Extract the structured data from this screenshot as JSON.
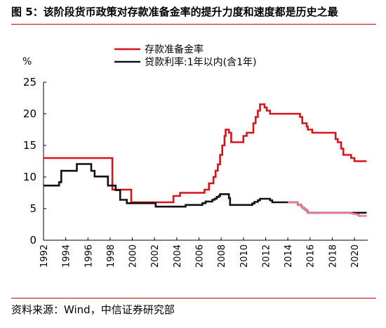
{
  "header": {
    "title": "图 5：该阶段货币政策对存款准备金率的提升力度和速度都是历史之最"
  },
  "footer": {
    "source": "资料来源：Wind，中信证券研究部"
  },
  "colors": {
    "rrr": "#d7141a",
    "loan": "#111111",
    "loan_overlay": "#f0748c",
    "rule": "#c00000"
  },
  "chart_data": {
    "type": "line",
    "title": "",
    "ylabel": "%",
    "xlabel": "",
    "xlim": [
      1992,
      2021.2
    ],
    "ylim": [
      0,
      25
    ],
    "yticks": [
      0,
      5,
      10,
      15,
      20,
      25
    ],
    "xticks": [
      1992,
      1994,
      1996,
      1998,
      2000,
      2002,
      2004,
      2006,
      2008,
      2010,
      2012,
      2014,
      2016,
      2018,
      2020
    ],
    "ytick_labels": [
      "0",
      "5",
      "10",
      "15",
      "20",
      "25"
    ],
    "xtick_labels": [
      "1992",
      "1994",
      "1996",
      "1998",
      "2000",
      "2002",
      "2004",
      "2006",
      "2008",
      "2010",
      "2012",
      "2014",
      "2016",
      "2018",
      "2020"
    ],
    "legend_position": "top-center",
    "grid": false,
    "series": [
      {
        "name": "存款准备金率",
        "step": true,
        "points": [
          [
            1992,
            13
          ],
          [
            1998.2,
            13
          ],
          [
            1998.2,
            8
          ],
          [
            1999.9,
            8
          ],
          [
            1999.9,
            6
          ],
          [
            2003.7,
            6
          ],
          [
            2003.7,
            7
          ],
          [
            2004.3,
            7
          ],
          [
            2004.3,
            7.5
          ],
          [
            2006.5,
            7.5
          ],
          [
            2006.5,
            8
          ],
          [
            2006.9,
            8
          ],
          [
            2006.9,
            9
          ],
          [
            2007.3,
            9
          ],
          [
            2007.3,
            10
          ],
          [
            2007.5,
            10
          ],
          [
            2007.5,
            11
          ],
          [
            2007.7,
            11
          ],
          [
            2007.7,
            12
          ],
          [
            2007.9,
            12
          ],
          [
            2007.9,
            13.5
          ],
          [
            2008.1,
            13.5
          ],
          [
            2008.1,
            15
          ],
          [
            2008.3,
            15
          ],
          [
            2008.3,
            16.5
          ],
          [
            2008.4,
            16.5
          ],
          [
            2008.4,
            17.5
          ],
          [
            2008.7,
            17.5
          ],
          [
            2008.7,
            17
          ],
          [
            2008.9,
            17
          ],
          [
            2008.9,
            15.5
          ],
          [
            2010.0,
            15.5
          ],
          [
            2010.0,
            16.5
          ],
          [
            2010.3,
            16.5
          ],
          [
            2010.3,
            17
          ],
          [
            2010.9,
            17
          ],
          [
            2010.9,
            18.5
          ],
          [
            2011.1,
            18.5
          ],
          [
            2011.1,
            19.5
          ],
          [
            2011.3,
            19.5
          ],
          [
            2011.3,
            20.5
          ],
          [
            2011.5,
            20.5
          ],
          [
            2011.5,
            21.5
          ],
          [
            2011.9,
            21.5
          ],
          [
            2011.9,
            21
          ],
          [
            2012.1,
            21
          ],
          [
            2012.1,
            20.5
          ],
          [
            2012.4,
            20.5
          ],
          [
            2012.4,
            20
          ],
          [
            2015.1,
            20
          ],
          [
            2015.1,
            19.5
          ],
          [
            2015.3,
            19.5
          ],
          [
            2015.3,
            18.5
          ],
          [
            2015.7,
            18.5
          ],
          [
            2015.7,
            18
          ],
          [
            2015.8,
            18
          ],
          [
            2015.8,
            17.5
          ],
          [
            2016.2,
            17.5
          ],
          [
            2016.2,
            17
          ],
          [
            2018.3,
            17
          ],
          [
            2018.3,
            16
          ],
          [
            2018.5,
            16
          ],
          [
            2018.5,
            15.5
          ],
          [
            2018.8,
            15.5
          ],
          [
            2018.8,
            14.5
          ],
          [
            2019.0,
            14.5
          ],
          [
            2019.0,
            13.5
          ],
          [
            2019.7,
            13.5
          ],
          [
            2019.7,
            13
          ],
          [
            2020.0,
            13
          ],
          [
            2020.0,
            12.5
          ],
          [
            2021.1,
            12.5
          ]
        ]
      },
      {
        "name": "贷款利率:1年以内(含1年)",
        "step": true,
        "points": [
          [
            1992,
            8.64
          ],
          [
            1993.4,
            8.64
          ],
          [
            1993.4,
            9.18
          ],
          [
            1993.6,
            9.18
          ],
          [
            1993.6,
            10.98
          ],
          [
            1995.0,
            10.98
          ],
          [
            1995.0,
            12.06
          ],
          [
            1996.3,
            12.06
          ],
          [
            1996.3,
            10.98
          ],
          [
            1996.6,
            10.98
          ],
          [
            1996.6,
            10.08
          ],
          [
            1997.8,
            10.08
          ],
          [
            1997.8,
            8.64
          ],
          [
            1998.5,
            8.64
          ],
          [
            1998.5,
            7.92
          ],
          [
            1998.9,
            7.92
          ],
          [
            1998.9,
            6.39
          ],
          [
            1999.5,
            6.39
          ],
          [
            1999.5,
            5.85
          ],
          [
            2002.1,
            5.85
          ],
          [
            2002.1,
            5.31
          ],
          [
            2004.8,
            5.31
          ],
          [
            2004.8,
            5.58
          ],
          [
            2006.3,
            5.58
          ],
          [
            2006.3,
            5.85
          ],
          [
            2006.6,
            5.85
          ],
          [
            2006.6,
            6.12
          ],
          [
            2007.2,
            6.12
          ],
          [
            2007.2,
            6.39
          ],
          [
            2007.4,
            6.39
          ],
          [
            2007.4,
            6.57
          ],
          [
            2007.6,
            6.57
          ],
          [
            2007.6,
            6.84
          ],
          [
            2007.8,
            6.84
          ],
          [
            2007.8,
            7.02
          ],
          [
            2007.9,
            7.02
          ],
          [
            2007.9,
            7.29
          ],
          [
            2008.7,
            7.29
          ],
          [
            2008.7,
            6.66
          ],
          [
            2008.8,
            6.66
          ],
          [
            2008.8,
            5.58
          ],
          [
            2010.8,
            5.58
          ],
          [
            2010.8,
            5.81
          ],
          [
            2011.0,
            5.81
          ],
          [
            2011.0,
            6.06
          ],
          [
            2011.3,
            6.06
          ],
          [
            2011.3,
            6.31
          ],
          [
            2011.5,
            6.31
          ],
          [
            2011.5,
            6.56
          ],
          [
            2012.4,
            6.56
          ],
          [
            2012.4,
            6.31
          ],
          [
            2012.6,
            6.31
          ],
          [
            2012.6,
            6.0
          ],
          [
            2014.9,
            6.0
          ],
          [
            2014.9,
            5.6
          ],
          [
            2015.2,
            5.6
          ],
          [
            2015.2,
            5.35
          ],
          [
            2015.3,
            5.35
          ],
          [
            2015.3,
            5.1
          ],
          [
            2015.5,
            5.1
          ],
          [
            2015.5,
            4.85
          ],
          [
            2015.7,
            4.85
          ],
          [
            2015.7,
            4.6
          ],
          [
            2015.8,
            4.6
          ],
          [
            2015.8,
            4.35
          ],
          [
            2021.1,
            4.35
          ]
        ]
      },
      {
        "name": "",
        "step": true,
        "points": [
          [
            2014.0,
            6.0
          ],
          [
            2014.9,
            6.0
          ],
          [
            2014.9,
            5.6
          ],
          [
            2015.2,
            5.6
          ],
          [
            2015.2,
            5.35
          ],
          [
            2015.3,
            5.35
          ],
          [
            2015.3,
            5.1
          ],
          [
            2015.5,
            5.1
          ],
          [
            2015.5,
            4.85
          ],
          [
            2015.7,
            4.85
          ],
          [
            2015.7,
            4.6
          ],
          [
            2015.8,
            4.6
          ],
          [
            2015.8,
            4.35
          ],
          [
            2019.7,
            4.35
          ],
          [
            2019.7,
            4.25
          ],
          [
            2019.9,
            4.25
          ],
          [
            2019.9,
            4.15
          ],
          [
            2020.2,
            4.15
          ],
          [
            2020.2,
            4.05
          ],
          [
            2020.4,
            4.05
          ],
          [
            2020.4,
            3.85
          ],
          [
            2021.1,
            3.85
          ]
        ]
      }
    ]
  }
}
